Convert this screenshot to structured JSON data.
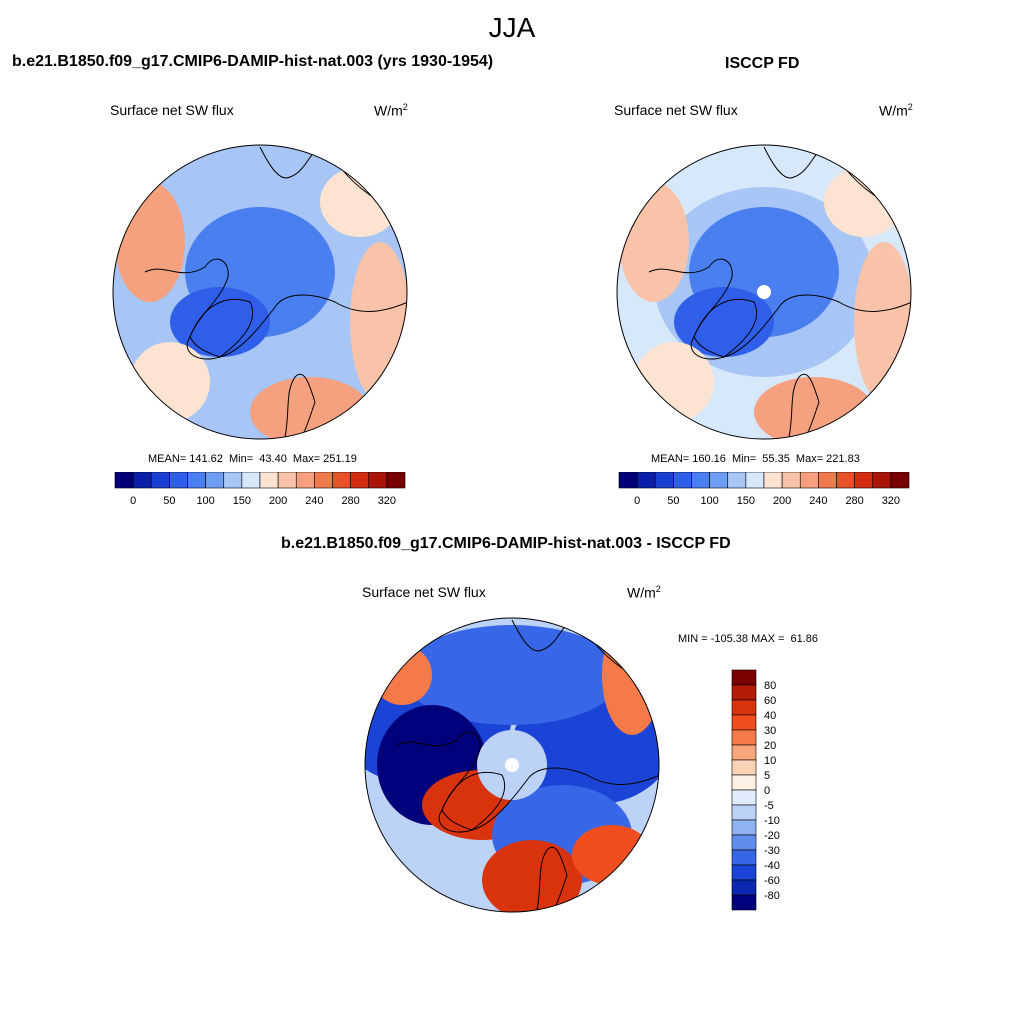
{
  "season": "JJA",
  "panels": [
    {
      "title": "b.e21.B1850.f09_g17.CMIP6-DAMIP-hist-nat.003 (yrs 1930-1954)",
      "variable": "Surface net SW flux",
      "units_base": "W/m",
      "units_exp": "2",
      "stats": "MEAN= 141.62  Min=  43.40  Max= 251.19",
      "colorbar": {
        "colors": [
          "#00007a",
          "#0a1fa8",
          "#1a3fd0",
          "#2f5fe8",
          "#4a7ff0",
          "#6e9ef2",
          "#a7c5f5",
          "#d6e8fa",
          "#fde4d2",
          "#f9c3a9",
          "#f5a07f",
          "#f07a50",
          "#e8522a",
          "#d42e12",
          "#a81408",
          "#7a0000"
        ],
        "tick_labels": [
          "0",
          "50",
          "100",
          "150",
          "200",
          "240",
          "280",
          "320"
        ]
      },
      "map": {
        "mean_color": "#a7c5f5",
        "pole_hole": false
      }
    },
    {
      "title": "ISCCP FD",
      "variable": "Surface net SW flux",
      "units_base": "W/m",
      "units_exp": "2",
      "stats": "MEAN= 160.16  Min=  55.35  Max= 221.83",
      "colorbar": {
        "colors": [
          "#00007a",
          "#0a1fa8",
          "#1a3fd0",
          "#2f5fe8",
          "#4a7ff0",
          "#6e9ef2",
          "#a7c5f5",
          "#d6e8fa",
          "#fde4d2",
          "#f9c3a9",
          "#f5a07f",
          "#f07a50",
          "#e8522a",
          "#d42e12",
          "#a81408",
          "#7a0000"
        ],
        "tick_labels": [
          "0",
          "50",
          "100",
          "150",
          "200",
          "240",
          "280",
          "320"
        ]
      },
      "map": {
        "mean_color": "#d6e8fa",
        "pole_hole": true
      }
    }
  ],
  "difference": {
    "title": "b.e21.B1850.f09_g17.CMIP6-DAMIP-hist-nat.003 - ISCCP FD",
    "variable": "Surface net SW flux",
    "units_base": "W/m",
    "units_exp": "2",
    "stats": "MIN = -105.38 MAX =  61.86",
    "colorbar": {
      "colors": [
        "#7a0000",
        "#b21c05",
        "#d9330e",
        "#f04e1f",
        "#f57a4a",
        "#f8a57c",
        "#fbd2b6",
        "#fdf0e4",
        "#e0ecfb",
        "#bcd3f7",
        "#8fb2f2",
        "#5f8ced",
        "#3766e6",
        "#1b44d6",
        "#0a28b0",
        "#00007a"
      ],
      "tick_labels": [
        "80",
        "60",
        "40",
        "30",
        "20",
        "10",
        "5",
        "0",
        "-5",
        "-10",
        "-20",
        "-30",
        "-40",
        "-60",
        "-80"
      ]
    }
  }
}
